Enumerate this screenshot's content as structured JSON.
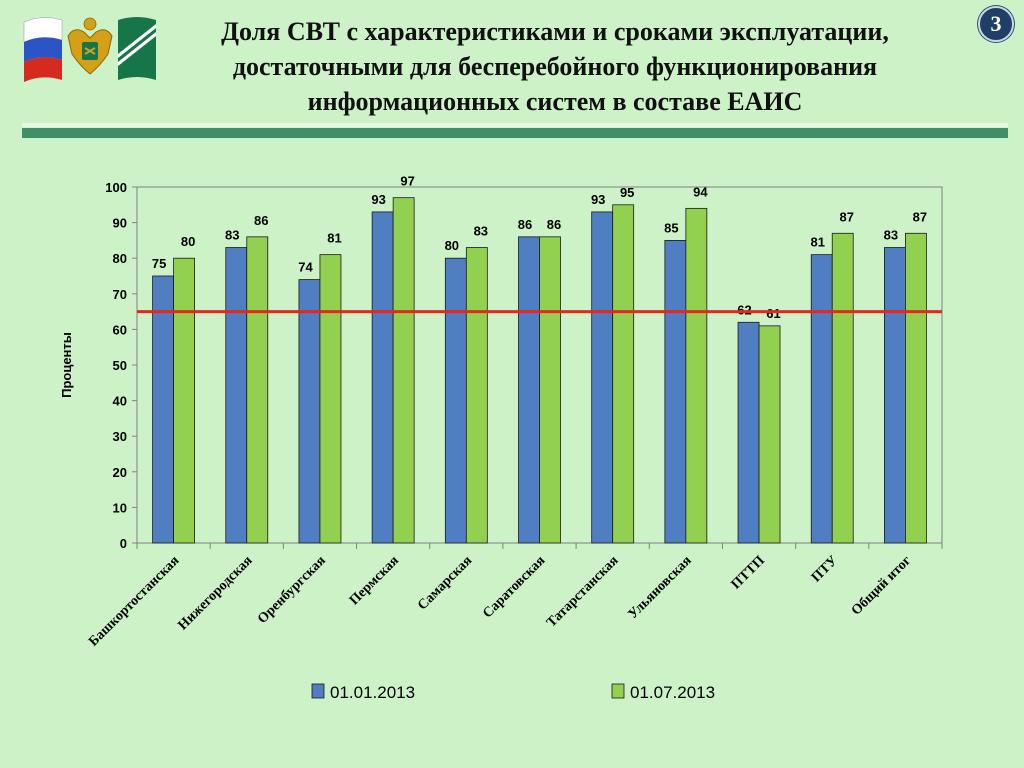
{
  "slide": {
    "title_lines": [
      "Доля СВТ с характеристиками и сроками эксплуатации,",
      "достаточными для бесперебойного функционирования",
      "информационных систем в составе ЕАИС"
    ],
    "page_number": "3",
    "colors": {
      "background": "#cdf2c8",
      "rule": "#3f8f68",
      "badge": "#1f3f66"
    }
  },
  "chart_data": {
    "type": "bar",
    "title": "",
    "xlabel": "",
    "ylabel": "Проценты",
    "ylim": [
      0,
      100
    ],
    "yticks": [
      0,
      10,
      20,
      30,
      40,
      50,
      60,
      70,
      80,
      90,
      100
    ],
    "grid": false,
    "legend": "bottom",
    "categories": [
      "Башкортостанская",
      "Нижегородская",
      "Оренбургская",
      "Пермская",
      "Самарская",
      "Саратовская",
      "Татарстанская",
      "Ульяновская",
      "ПТТП",
      "ПТУ",
      "Общий итог"
    ],
    "series": [
      {
        "name": "01.01.2013",
        "color": "#4f7fc2",
        "values": [
          75,
          83,
          74,
          93,
          80,
          86,
          93,
          85,
          62,
          81,
          83
        ]
      },
      {
        "name": "01.07.2013",
        "color": "#92d050",
        "values": [
          80,
          86,
          81,
          97,
          83,
          86,
          95,
          94,
          61,
          87,
          87
        ]
      }
    ],
    "data_label_values": [
      [
        75,
        83,
        74,
        93,
        80,
        86,
        93,
        85,
        62,
        81,
        83
      ],
      [
        80,
        86,
        81,
        97,
        83,
        86,
        95,
        94,
        61,
        87,
        87
      ]
    ],
    "reference_line": {
      "value": 65,
      "color": "#e8261c"
    }
  }
}
